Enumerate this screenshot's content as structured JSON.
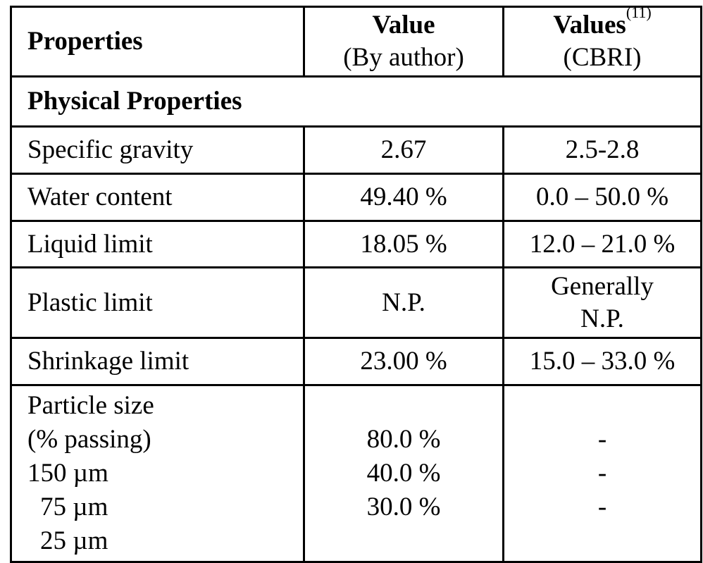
{
  "header": {
    "properties": "Properties",
    "value_title": "Value",
    "value_sub": "(By author)",
    "values_title": "Values",
    "values_ref": "(11)",
    "values_sub": "(CBRI)"
  },
  "section": "Physical Properties",
  "rows": [
    {
      "property": "Specific gravity",
      "value": "2.67",
      "cbri": "2.5-2.8"
    },
    {
      "property": "Water content",
      "value": "49.40 %",
      "cbri": "0.0 – 50.0 %"
    },
    {
      "property": "Liquid limit",
      "value": "18.05 %",
      "cbri": "12.0 – 21.0 %"
    },
    {
      "property": "Plastic limit",
      "value": "N.P.",
      "cbri_line1": "Generally",
      "cbri_line2": "N.P."
    },
    {
      "property": "Shrinkage limit",
      "value": "23.00 %",
      "cbri": "15.0 – 33.0 %"
    }
  ],
  "particle": {
    "label1": "Particle size",
    "label2": "(% passing)",
    "sizes": [
      "150 µm",
      "75 µm",
      "25 µm"
    ],
    "values": [
      "80.0 %",
      "40.0 %",
      "30.0 %"
    ],
    "cbri": [
      "-",
      "-",
      "-"
    ]
  }
}
